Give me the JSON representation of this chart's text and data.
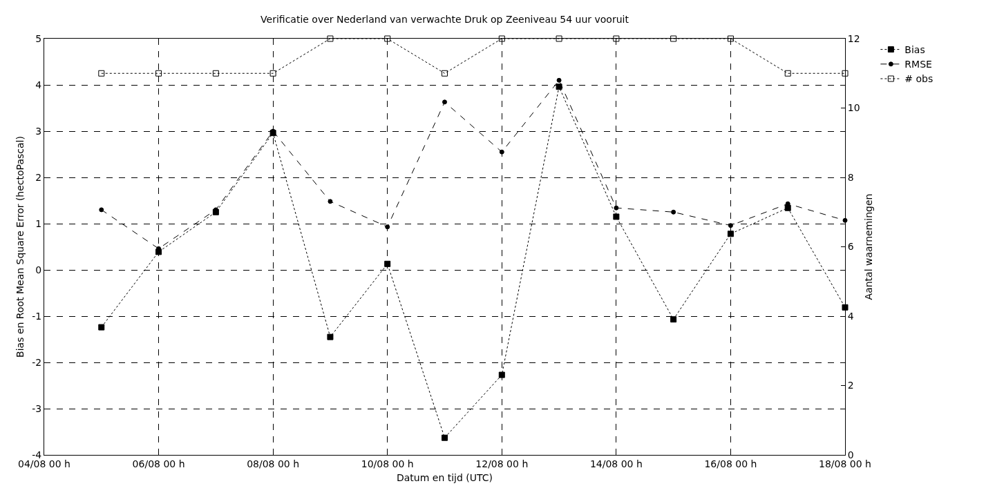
{
  "chart_data": {
    "type": "line",
    "title": "Verificatie over Nederland van verwachte Druk op Zeeniveau 54 uur vooruit",
    "xlabel": "Datum en tijd (UTC)",
    "ylabel": "Bias en Root Mean Square Error (hectoPascal)",
    "y2label": "Aantal waarnemingen",
    "x": [
      "--08-05",
      "--08-06",
      "--08-07",
      "--08-08",
      "--08-09",
      "--08-10",
      "--08-11",
      "--08-12",
      "--08-13",
      "--08-14",
      "--08-15",
      "--08-16",
      "--08-17",
      "--08-18"
    ],
    "series": [
      {
        "name": "Bias",
        "color": "#000000",
        "marker": "square",
        "line_style": "dotted",
        "values": [
          -1.24,
          0.39,
          1.25,
          2.96,
          -1.45,
          0.13,
          -3.63,
          -2.27,
          3.96,
          1.15,
          -1.07,
          0.78,
          1.34,
          -0.81
        ]
      },
      {
        "name": "RMSE",
        "color": "#000000",
        "marker": "circle",
        "line_style": "dashed",
        "values": [
          1.3,
          0.46,
          1.3,
          3.0,
          1.48,
          0.93,
          3.63,
          2.55,
          4.1,
          1.34,
          1.25,
          0.96,
          1.43,
          1.07
        ]
      },
      {
        "name": "# obs",
        "color": "#000000",
        "marker": "square-open",
        "line_style": "dotted",
        "axis": "y2",
        "values": [
          11,
          11,
          11,
          11,
          12,
          12,
          11,
          12,
          12,
          12,
          12,
          12,
          11,
          11
        ]
      }
    ],
    "xlim": [
      "--08-04",
      "--08-18"
    ],
    "xticks": [
      {
        "value": "--08-04",
        "label": "04/08 00 h"
      },
      {
        "value": "--08-06",
        "label": "06/08 00 h"
      },
      {
        "value": "--08-08",
        "label": "08/08 00 h"
      },
      {
        "value": "--08-10",
        "label": "10/08 00 h"
      },
      {
        "value": "--08-12",
        "label": "12/08 00 h"
      },
      {
        "value": "--08-14",
        "label": "14/08 00 h"
      },
      {
        "value": "--08-16",
        "label": "16/08 00 h"
      },
      {
        "value": "--08-18",
        "label": "18/08 00 h"
      }
    ],
    "ylim": [
      -4,
      5
    ],
    "yticks": [
      -4,
      -3,
      -2,
      -1,
      0,
      1,
      2,
      3,
      4,
      5
    ],
    "y2lim": [
      0,
      12
    ],
    "y2ticks": [
      0,
      2,
      4,
      6,
      8,
      10,
      12
    ],
    "grid": true,
    "legend": "top right"
  }
}
